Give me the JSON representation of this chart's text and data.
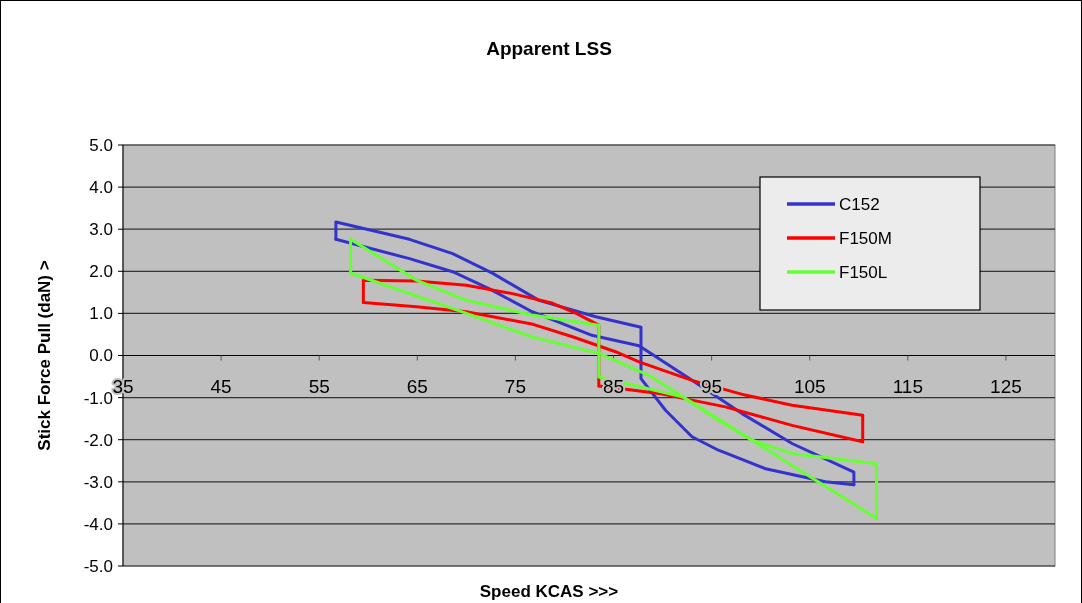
{
  "chart_data": {
    "type": "line",
    "title": "Apparent LSS",
    "xlabel": "Speed KCAS >>>",
    "ylabel": "Stick Force Pull (daN) >",
    "xlim": [
      35,
      130
    ],
    "xticks": [
      35,
      45,
      55,
      65,
      75,
      85,
      95,
      105,
      115,
      125
    ],
    "ylim": [
      -5,
      5
    ],
    "yticks": [
      {
        "value": -5,
        "label": "-5.0"
      },
      {
        "value": -4,
        "label": "-4.0"
      },
      {
        "value": -3,
        "label": "-3.0"
      },
      {
        "value": -2,
        "label": "-2.0"
      },
      {
        "value": -1,
        "label": "-1.0"
      },
      {
        "value": 0,
        "label": "0.0"
      },
      {
        "value": 1,
        "label": "1.0"
      },
      {
        "value": 2,
        "label": "2.0"
      },
      {
        "value": 3,
        "label": "3.0"
      },
      {
        "value": 4,
        "label": "4.0"
      },
      {
        "value": 5,
        "label": "5.0"
      }
    ],
    "grid": "y",
    "legend": "top right",
    "marker": "none",
    "line_style": "solid",
    "series": [
      {
        "name": "C152",
        "color": "#3333cc",
        "x": [
          56.7,
          64.2,
          68.6,
          72.3,
          76.7,
          82.8,
          87.6,
          93.0,
          98.1,
          103.2,
          109.5,
          109.5
        ],
        "values": [
          2.76,
          2.3,
          1.99,
          1.59,
          1.04,
          0.48,
          0.23,
          -0.59,
          -1.38,
          -2.09,
          -2.77,
          -3.07
        ]
      },
      {
        "color": "#3333cc",
        "x": [
          109.5,
          106.6,
          100.5,
          95.7,
          93.0,
          90.3,
          87.8,
          87.8,
          87.8,
          83.2,
          77.4,
          72.7,
          68.6,
          64.2,
          56.7,
          56.7
        ],
        "values": [
          -3.07,
          -3.0,
          -2.69,
          -2.25,
          -1.93,
          -1.3,
          -0.55,
          0.6,
          0.67,
          0.92,
          1.31,
          1.95,
          2.42,
          2.76,
          3.17,
          2.76
        ]
      },
      {
        "name": "F150M",
        "color": "#ff0000",
        "x": [
          59.5,
          59.5,
          64.9,
          70.0,
          74.7,
          78.8,
          81.2,
          83.5,
          83.5,
          83.9,
          89.6,
          96.4,
          103.2,
          110.4,
          110.4
        ],
        "values": [
          1.26,
          1.79,
          1.77,
          1.67,
          1.47,
          1.24,
          1.0,
          0.72,
          -0.73,
          -0.73,
          -0.9,
          -1.22,
          -1.66,
          -2.05,
          -1.42
        ]
      },
      {
        "color": "#ff0000",
        "x": [
          110.4,
          103.2,
          98.4,
          93.0,
          87.6,
          85.2,
          80.9,
          76.8,
          70.0,
          64.9,
          59.5
        ],
        "values": [
          -1.42,
          -1.18,
          -0.94,
          -0.59,
          -0.15,
          0.09,
          0.44,
          0.74,
          1.04,
          1.16,
          1.26
        ]
      },
      {
        "name": "F150L",
        "color": "#66ff33",
        "x": [
          58.2,
          58.2,
          64.9,
          70.0,
          76.7,
          83.5,
          83.5,
          92.0,
          95.7,
          99.1,
          103.2,
          111.8,
          111.8
        ],
        "values": [
          1.96,
          2.76,
          1.79,
          1.31,
          0.96,
          0.72,
          -0.51,
          -0.98,
          -1.54,
          -2.01,
          -2.33,
          -2.57,
          -3.87
        ]
      },
      {
        "color": "#66ff33",
        "x": [
          111.8,
          88.6,
          83.5,
          76.7,
          70.0,
          58.2
        ],
        "values": [
          -3.87,
          -0.47,
          0.05,
          0.44,
          1.0,
          1.96
        ]
      }
    ]
  }
}
